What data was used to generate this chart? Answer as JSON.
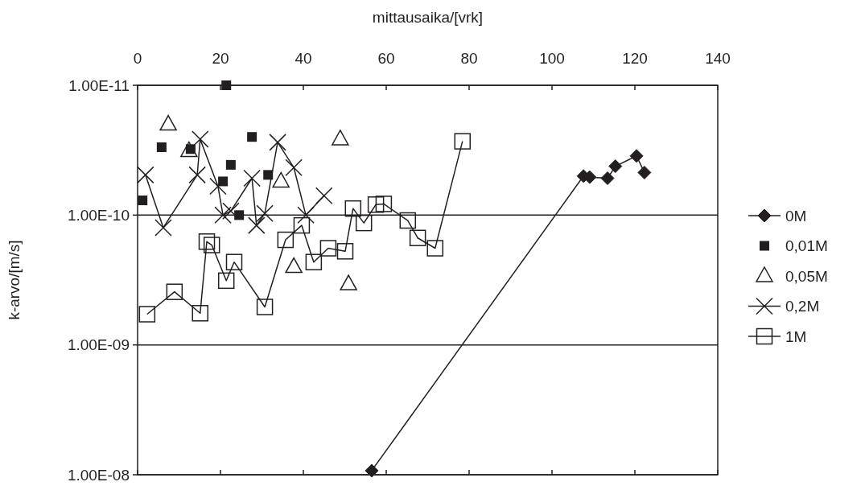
{
  "chart_data": {
    "type": "line",
    "xlabel": "mittausaika/[vrk]",
    "ylabel": "k-arvo/[m/s]",
    "xlim": [
      0,
      140
    ],
    "xticks": [
      0,
      20,
      40,
      60,
      80,
      100,
      120,
      140
    ],
    "ylim": [
      1e-08,
      1e-11
    ],
    "log": true,
    "yticks": [
      {
        "value": 1e-08,
        "label": "1.00E-08"
      },
      {
        "value": 1e-09,
        "label": "1.00E-09"
      },
      {
        "value": 1e-10,
        "label": "1.00E-10"
      },
      {
        "value": 1e-11,
        "label": "1.00E-11"
      }
    ],
    "grid": "y",
    "legend": "right",
    "series": [
      {
        "name": "0M",
        "marker": "diamond",
        "color": "#231f20",
        "x": [
          56.5,
          107.6,
          109.1,
          113.4,
          115.3,
          120.4,
          122.3
        ],
        "values": [
          9.3e-09,
          5e-11,
          5.1e-11,
          5.2e-11,
          4.2e-11,
          3.5e-11,
          4.7e-11
        ]
      },
      {
        "name": "0,01M",
        "type": "scatter",
        "marker": "square",
        "color": "#231f20",
        "x": [
          1.2,
          5.8,
          12.8,
          20.6,
          21.4,
          22.5,
          24.5,
          27.6,
          31.5
        ],
        "values": [
          7.7e-11,
          3e-11,
          3.1e-11,
          5.5e-11,
          1e-11,
          4.1e-11,
          1e-10,
          2.5e-11,
          4.9e-11
        ]
      },
      {
        "name": "0,05M",
        "type": "scatter",
        "marker": "triangle",
        "color": "#231f20",
        "x": [
          7.4,
          12.4,
          34.6,
          37.7,
          48.9,
          50.9
        ],
        "values": [
          2e-11,
          3.2e-11,
          5.5e-11,
          2.5e-10,
          2.6e-11,
          3.4e-10
        ]
      },
      {
        "name": "0,2M",
        "marker": "cross",
        "color": "#231f20",
        "x": [
          1.9,
          6.2,
          14.4,
          15.1,
          19.4,
          20.6,
          22.5,
          27.6,
          28.7,
          30.7,
          33.8,
          37.7,
          40.6,
          45.0
        ],
        "values": [
          4.9e-11,
          1.25e-10,
          4.9e-11,
          2.6e-11,
          6e-11,
          1e-10,
          9.3e-11,
          5.2e-11,
          1.2e-10,
          9.7e-11,
          2.75e-11,
          4.3e-11,
          1e-10,
          7.1e-11
        ]
      },
      {
        "name": "1M",
        "marker": "square",
        "color": "#231f20",
        "x": [
          2.3,
          8.9,
          15.1,
          16.7,
          17.9,
          21.4,
          23.3,
          30.7,
          35.7,
          39.6,
          42.5,
          46.0,
          50.1,
          52.0,
          54.6,
          57.5,
          59.4,
          65.2,
          67.6,
          71.8,
          78.4
        ],
        "values": [
          5.8e-10,
          3.9e-10,
          5.7e-10,
          1.6e-10,
          1.7e-10,
          3.2e-10,
          2.3e-10,
          5.1e-10,
          1.55e-10,
          1.2e-10,
          2.3e-10,
          1.8e-10,
          1.9e-10,
          8.9e-11,
          1.15e-10,
          8.3e-11,
          8.2e-11,
          1.1e-10,
          1.5e-10,
          1.8e-10,
          2.7e-11
        ]
      }
    ]
  }
}
